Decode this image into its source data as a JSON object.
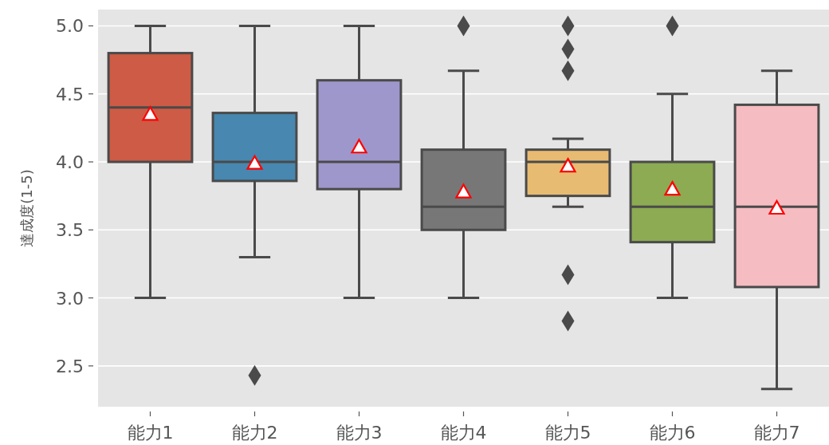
{
  "chart_data": {
    "type": "box",
    "ylabel": "達成度(1-5)",
    "categories": [
      "能力1",
      "能力2",
      "能力3",
      "能力4",
      "能力5",
      "能力6",
      "能力7"
    ],
    "colors": [
      "#cd5b45",
      "#4787b0",
      "#9e97cc",
      "#777777",
      "#e7bb72",
      "#8cab52",
      "#f5bcc1"
    ],
    "boxes": [
      {
        "low": 3.0,
        "q1": 4.0,
        "median": 4.4,
        "q3": 4.8,
        "high": 5.0,
        "mean": 4.35
      },
      {
        "low": 3.3,
        "q1": 3.86,
        "median": 4.0,
        "q3": 4.36,
        "high": 5.0,
        "mean": 3.99,
        "outliers": [
          2.43
        ]
      },
      {
        "low": 3.0,
        "q1": 3.8,
        "median": 4.0,
        "q3": 4.6,
        "high": 5.0,
        "mean": 4.11
      },
      {
        "low": 3.0,
        "q1": 3.5,
        "median": 3.67,
        "q3": 4.09,
        "high": 4.67,
        "mean": 3.78,
        "outliers": [
          5.0
        ]
      },
      {
        "low": 3.67,
        "q1": 3.75,
        "median": 4.0,
        "q3": 4.09,
        "high": 4.17,
        "mean": 3.97,
        "outliers": [
          5.0,
          4.83,
          4.67,
          3.17,
          2.83
        ]
      },
      {
        "low": 3.0,
        "q1": 3.41,
        "median": 3.67,
        "q3": 4.0,
        "high": 4.5,
        "mean": 3.8,
        "outliers": [
          5.0
        ]
      },
      {
        "low": 2.33,
        "q1": 3.08,
        "median": 3.67,
        "q3": 4.42,
        "high": 4.67,
        "mean": 3.66
      }
    ],
    "ylim": [
      2.2,
      5.12
    ],
    "yticks": [
      2.5,
      {
        "value": 3,
        "label": "3.0"
      },
      3.5,
      {
        "value": 4,
        "label": "4.0"
      },
      4.5,
      {
        "value": 5,
        "label": "5.0"
      }
    ],
    "grid": "y"
  }
}
